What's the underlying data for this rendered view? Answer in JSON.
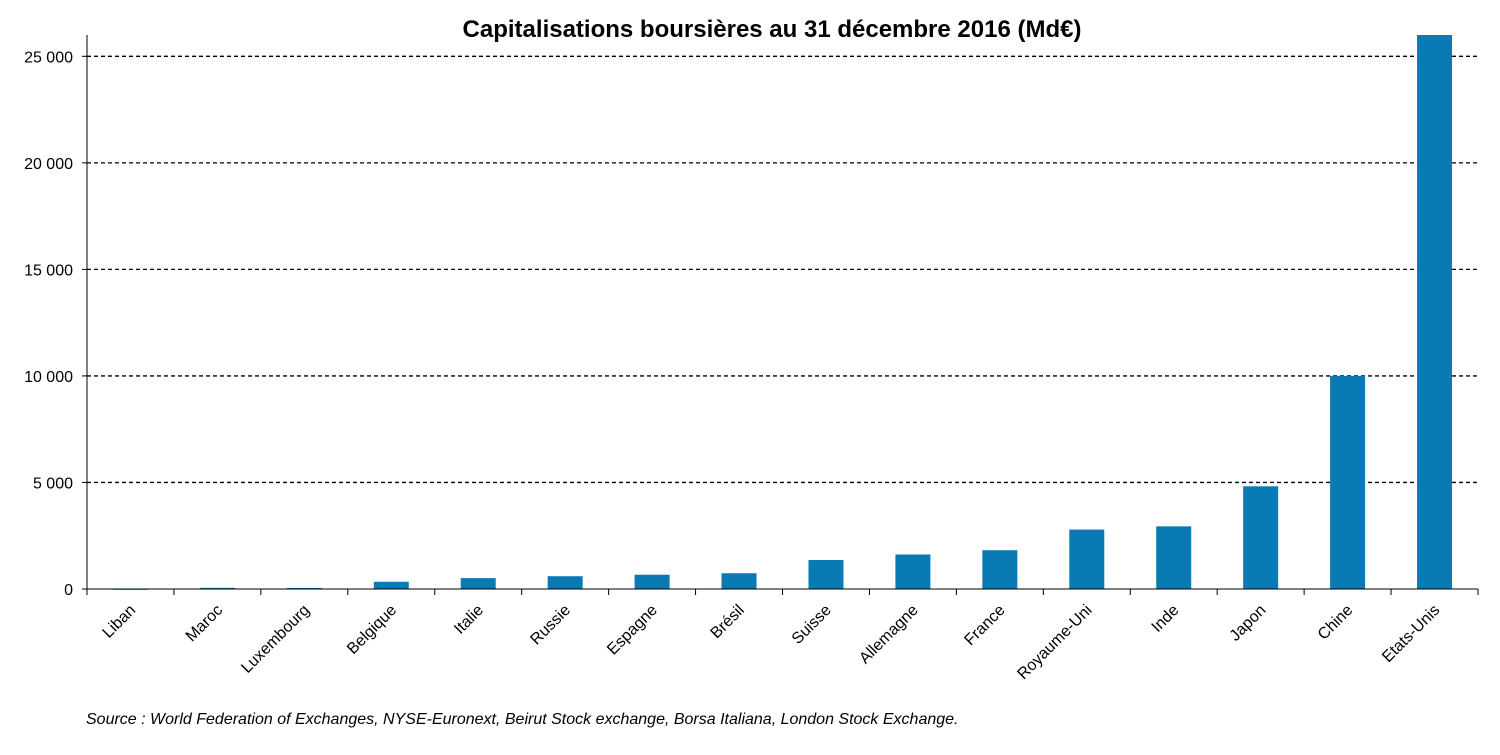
{
  "chart_data": {
    "type": "bar",
    "title": "Capitalisations boursières au 31 décembre 2016 (Md€)",
    "xlabel": "",
    "ylabel": "",
    "categories": [
      "Liban",
      "Maroc",
      "Luxembourg",
      "Belgique",
      "Italie",
      "Russie",
      "Espagne",
      "Brésil",
      "Suisse",
      "Allemagne",
      "France",
      "Royaume-Uni",
      "Inde",
      "Japon",
      "Chine",
      "Etats-Unis"
    ],
    "values": [
      10,
      55,
      50,
      340,
      510,
      600,
      670,
      740,
      1360,
      1620,
      1820,
      2790,
      2940,
      4820,
      10000,
      26000
    ],
    "ylim": [
      0,
      26000
    ],
    "yticks": [
      0,
      5000,
      10000,
      15000,
      20000,
      25000
    ],
    "ytick_labels": [
      "0",
      "5 000",
      "10 000",
      "15 000",
      "20 000",
      "25 000"
    ],
    "grid": "horizontal-dashed",
    "legend": "none",
    "bar_color": "#0a7ab4",
    "source": "Source : World Federation of Exchanges, NYSE-Euronext, Beirut Stock exchange, Borsa Italiana, London Stock Exchange."
  }
}
